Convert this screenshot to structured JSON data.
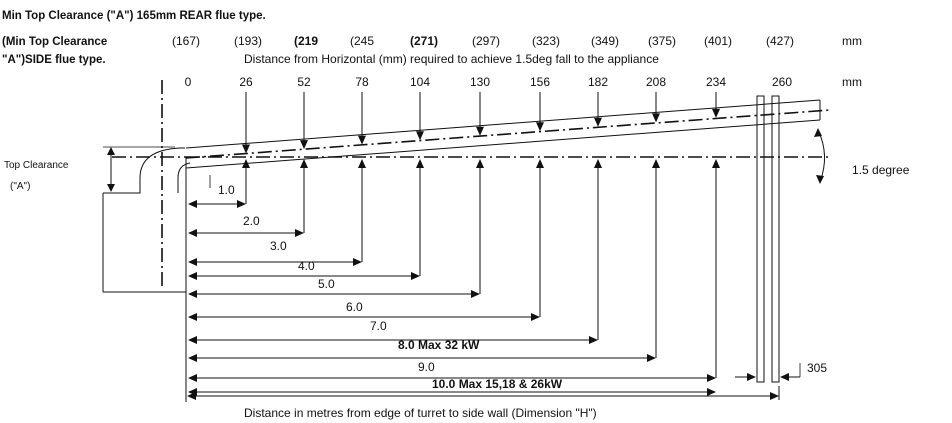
{
  "header": {
    "line1": "Min Top Clearance (\"A\") 165mm REAR flue  type.",
    "line2": "(Min Top Clearance",
    "line3": "\"A\")SIDE flue type.",
    "horizontal_note": "Distance from Horizontal (mm) required to achieve 1.5deg fall to the appliance"
  },
  "side_values": [
    {
      "text": "(167)",
      "bold": false
    },
    {
      "text": "(193)",
      "bold": false
    },
    {
      "text": "(219",
      "bold": true
    },
    {
      "text": "(245",
      "bold": false
    },
    {
      "text": "(271)",
      "bold": true
    },
    {
      "text": "(297)",
      "bold": false
    },
    {
      "text": "(323)",
      "bold": false
    },
    {
      "text": "(349)",
      "bold": false
    },
    {
      "text": "(375)",
      "bold": false
    },
    {
      "text": "(401)",
      "bold": false
    },
    {
      "text": "(427)",
      "bold": false
    }
  ],
  "side_unit": "mm",
  "rear_values": [
    "0",
    "26",
    "52",
    "78",
    "104",
    "130",
    "156",
    "182",
    "208",
    "234",
    "260"
  ],
  "rear_unit": "mm",
  "angle_label": "1.5 degree",
  "top_clearance_label": "Top Clearance",
  "top_clearance_symbol": "(\"A\")",
  "distances": [
    {
      "text": "1.0",
      "bold": false
    },
    {
      "text": "2.0",
      "bold": false
    },
    {
      "text": "3.0",
      "bold": false
    },
    {
      "text": "4.0",
      "bold": false
    },
    {
      "text": "5.0",
      "bold": false
    },
    {
      "text": "6.0",
      "bold": false
    },
    {
      "text": "7.0",
      "bold": false
    },
    {
      "text": "8.0  Max 32 kW",
      "bold": true
    },
    {
      "text": "9.0",
      "bold": false
    },
    {
      "text": "10.0  Max 15,18 & 26kW",
      "bold": true
    }
  ],
  "wall_dimension": "305",
  "footer": "Distance in metres from edge of turret to side wall (Dimension \"H\")"
}
